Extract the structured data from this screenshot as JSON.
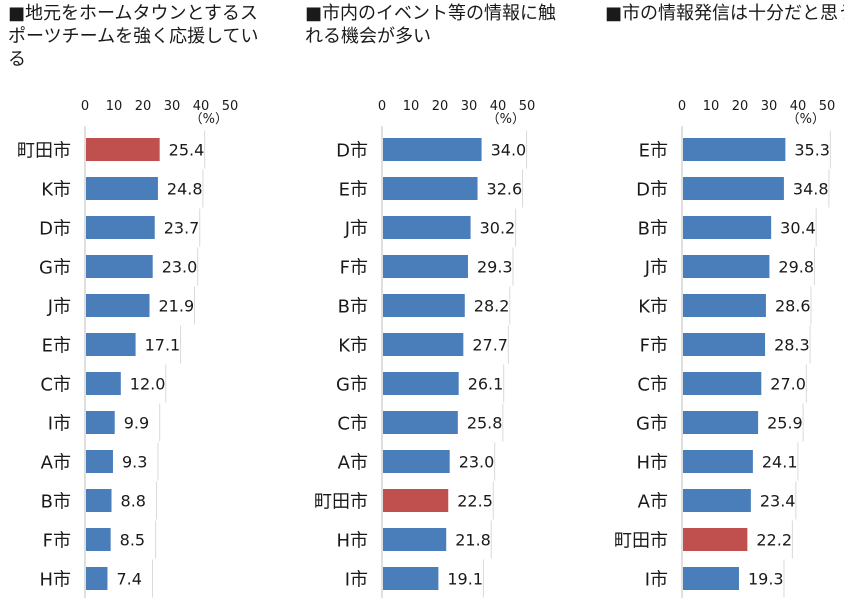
{
  "chart_data": [
    {
      "type": "bar",
      "orientation": "horizontal",
      "title": "■地元をホームタウンとするスポーツチームを強く応援している",
      "unit": "（%）",
      "xlim": [
        0,
        50
      ],
      "ticks": [
        0,
        10,
        20,
        30,
        40,
        50
      ],
      "highlight": "町田市",
      "categories": [
        "町田市",
        "K市",
        "D市",
        "G市",
        "J市",
        "E市",
        "C市",
        "I市",
        "A市",
        "B市",
        "F市",
        "H市"
      ],
      "values": [
        25.4,
        24.8,
        23.7,
        23.0,
        21.9,
        17.1,
        12.0,
        9.9,
        9.3,
        8.8,
        8.5,
        7.4
      ],
      "value_labels": [
        "25.4",
        "24.8",
        "23.7",
        "23.0",
        "21.9",
        "17.1",
        "12.0",
        "9.9",
        "9.3",
        "8.8",
        "8.5",
        "7.4"
      ]
    },
    {
      "type": "bar",
      "orientation": "horizontal",
      "title": "■市内のイベント等の情報に触れる機会が多い",
      "unit": "（%）",
      "xlim": [
        0,
        50
      ],
      "ticks": [
        0,
        10,
        20,
        30,
        40,
        50
      ],
      "highlight": "町田市",
      "categories": [
        "D市",
        "E市",
        "J市",
        "F市",
        "B市",
        "K市",
        "G市",
        "C市",
        "A市",
        "町田市",
        "H市",
        "I市"
      ],
      "values": [
        34.0,
        32.6,
        30.2,
        29.3,
        28.2,
        27.7,
        26.1,
        25.8,
        23.0,
        22.5,
        21.8,
        19.1
      ],
      "value_labels": [
        "34.0",
        "32.6",
        "30.2",
        "29.3",
        "28.2",
        "27.7",
        "26.1",
        "25.8",
        "23.0",
        "22.5",
        "21.8",
        "19.1"
      ]
    },
    {
      "type": "bar",
      "orientation": "horizontal",
      "title": "■市の情報発信は十分だと思う",
      "unit": "（%）",
      "xlim": [
        0,
        50
      ],
      "ticks": [
        0,
        10,
        20,
        30,
        40,
        50
      ],
      "highlight": "町田市",
      "categories": [
        "E市",
        "D市",
        "B市",
        "J市",
        "K市",
        "F市",
        "C市",
        "G市",
        "H市",
        "A市",
        "町田市",
        "I市"
      ],
      "values": [
        35.3,
        34.8,
        30.4,
        29.8,
        28.6,
        28.3,
        27.0,
        25.9,
        24.1,
        23.4,
        22.2,
        19.3
      ],
      "value_labels": [
        "35.3",
        "34.8",
        "30.4",
        "29.8",
        "28.6",
        "28.3",
        "27.0",
        "25.9",
        "24.1",
        "23.4",
        "22.2",
        "19.3"
      ]
    }
  ],
  "colors": {
    "bar": "#4a7ebb",
    "highlight": "#c0504d",
    "axis": "#bfbfbf",
    "text": "#1a1a1a"
  }
}
